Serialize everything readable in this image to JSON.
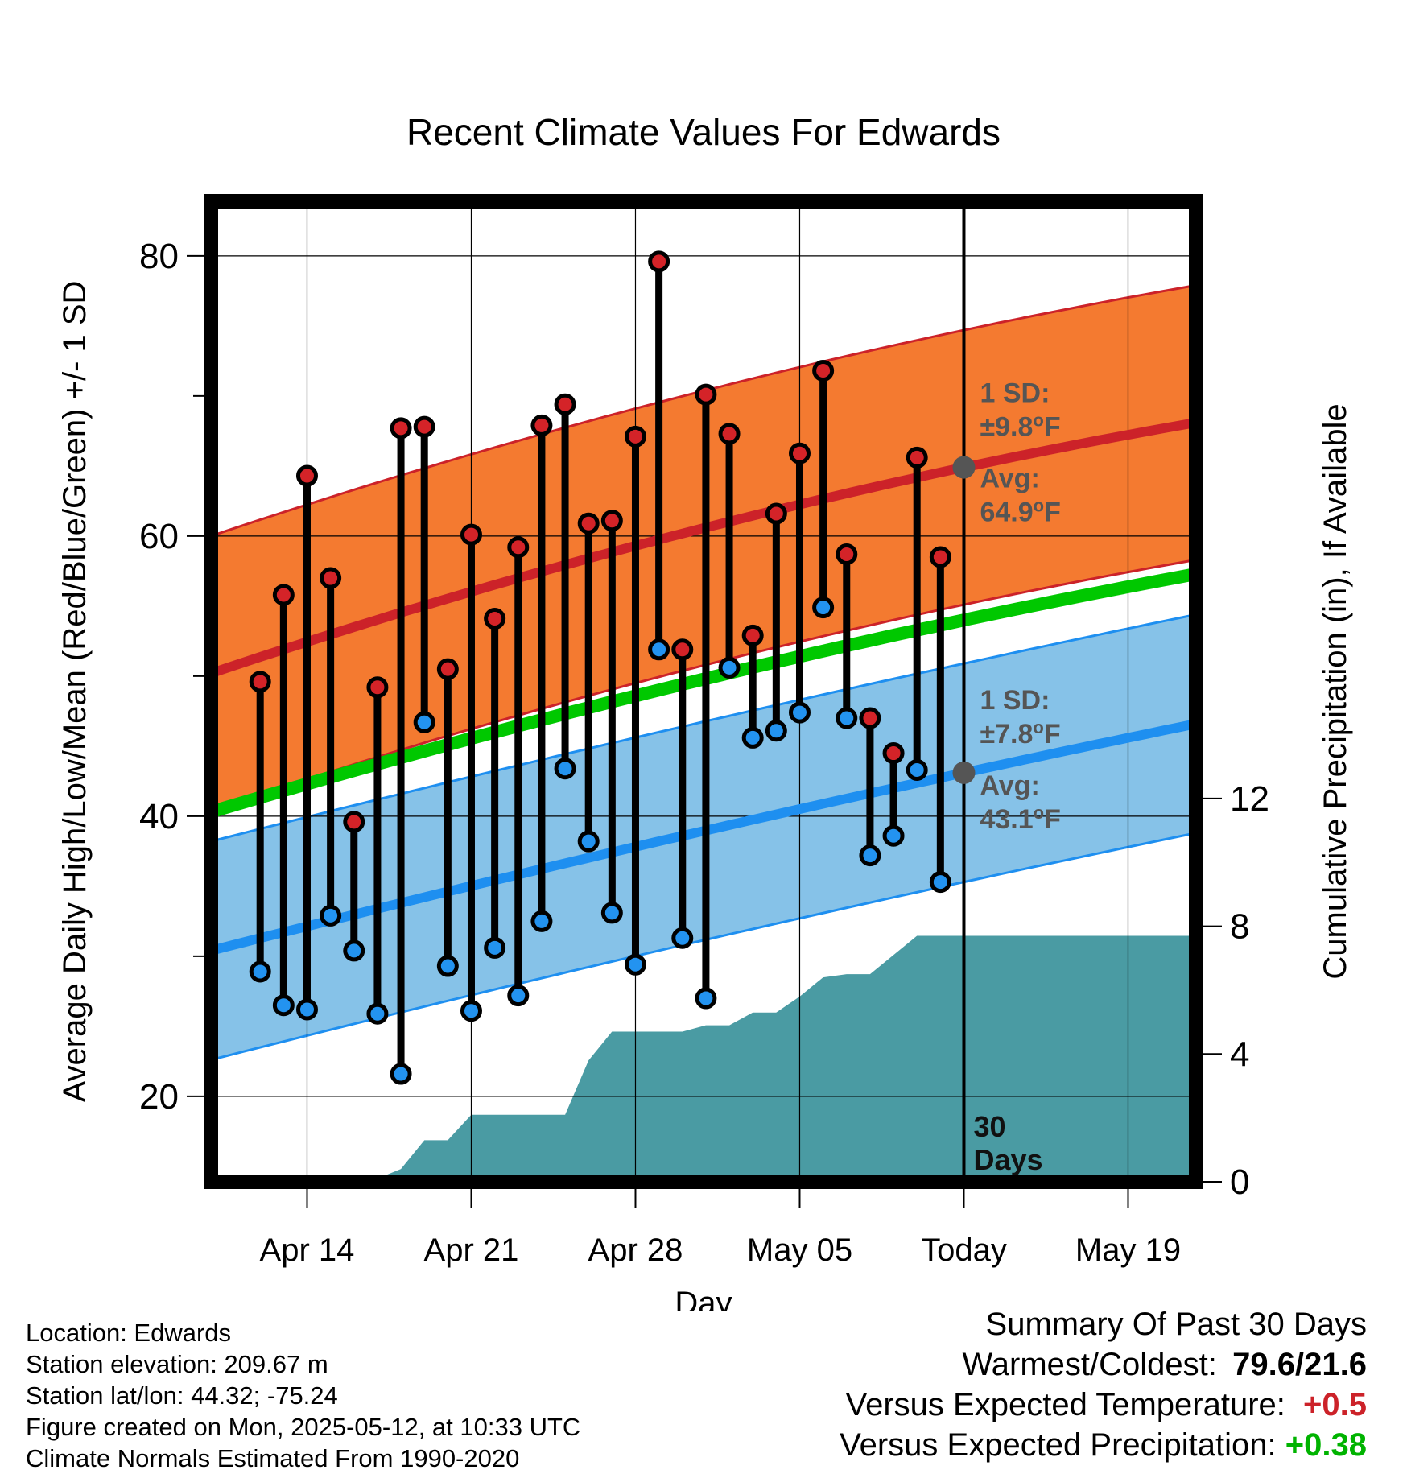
{
  "chart_data": {
    "type": "line",
    "title": "Recent Climate Values For Edwards",
    "xlabel": "Day",
    "ylabel": "Average Daily High/Low/Mean (Red/Blue/Green) +/- 1 SD",
    "ylabel_right": "Cumulative Precipitation (in), If Available",
    "x_ticks": [
      "Apr 14",
      "Apr 21",
      "Apr 28",
      "May 05",
      "Today",
      "May 19"
    ],
    "y_ticks_left": [
      20,
      40,
      60,
      80
    ],
    "y_ticks_right": [
      0,
      4,
      8,
      12
    ],
    "ylim": [
      13.9,
      83.9
    ],
    "ylim_right": [
      0,
      30.7
    ],
    "xlim_days": [
      -32.1,
      9.9
    ],
    "grid": true,
    "days": [
      -30,
      -29,
      -28,
      -27,
      -26,
      -25,
      -24,
      -23,
      -22,
      -21,
      -20,
      -19,
      -18,
      -17,
      -16,
      -15,
      -14,
      -13,
      -12,
      -11,
      -10,
      -9,
      -8,
      -7,
      -6,
      -5,
      -4,
      -3,
      -2,
      -1
    ],
    "highs": [
      49.6,
      55.8,
      64.3,
      57.0,
      39.6,
      49.2,
      67.7,
      67.8,
      50.5,
      60.1,
      54.1,
      59.2,
      67.9,
      69.4,
      60.9,
      61.1,
      67.1,
      79.6,
      51.9,
      70.1,
      67.3,
      52.9,
      61.6,
      65.9,
      71.8,
      58.7,
      47.0,
      44.5,
      65.6,
      58.5
    ],
    "lows": [
      28.9,
      26.5,
      26.2,
      32.9,
      30.4,
      25.9,
      21.6,
      46.7,
      29.3,
      26.1,
      30.6,
      27.2,
      32.5,
      43.4,
      38.2,
      33.1,
      29.4,
      51.9,
      31.3,
      27.0,
      50.6,
      45.6,
      46.1,
      47.4,
      54.9,
      47.0,
      37.2,
      38.6,
      43.3,
      35.3
    ],
    "normal_high": {
      "start": 50.2,
      "today": 64.9,
      "end": 68.1,
      "sd": 9.8
    },
    "normal_low": {
      "start": 30.4,
      "today": 43.1,
      "end": 46.6,
      "sd": 7.8
    },
    "normal_mean": {
      "start": 40.3,
      "today": 54.0,
      "end": 57.3
    },
    "precip_cumulative": [
      0,
      0,
      0,
      0,
      0,
      0.1,
      0.4,
      1.3,
      1.3,
      2.1,
      2.1,
      2.1,
      2.1,
      2.1,
      3.8,
      4.7,
      4.7,
      4.7,
      4.7,
      4.9,
      4.9,
      5.3,
      5.3,
      5.8,
      6.4,
      6.5,
      6.5,
      7.1,
      7.7,
      7.7,
      7.7
    ],
    "annotations": {
      "high_sd_label": "1 SD:",
      "high_sd_value": "±9.8",
      "high_avg_label": "Avg:",
      "high_avg_value": "64.9",
      "low_sd_label": "1 SD:",
      "low_sd_value": "±7.8",
      "low_avg_label": "Avg:",
      "low_avg_value": "43.1",
      "degree_unit": "o",
      "temp_unit": "F",
      "window_count": "30",
      "window_unit": "Days"
    },
    "colors": {
      "high_band": "#f47a30",
      "high_line": "#cc2229",
      "low_band": "#86c2e8",
      "low_line": "#1e8ff0",
      "mean_line": "#00c800",
      "precip": "#4a9ba3",
      "marker_high": "#d42328",
      "marker_low": "#2393f0",
      "avg_marker": "#555555",
      "annotation_text": "#555555"
    }
  },
  "footer": {
    "location": "Location: Edwards",
    "elevation": "Station elevation: 209.67 m",
    "latlon": "Station lat/lon: 44.32; -75.24",
    "created": "Figure created on Mon, 2025-05-12, at 10:33 UTC",
    "normals": "Climate Normals Estimated From 1990-2020"
  },
  "summary": {
    "title": "Summary Of Past 30 Days",
    "warmest_label": "Warmest/Coldest:",
    "warmest_value": "79.6/21.6",
    "temp_label": "Versus Expected Temperature:",
    "temp_value": "+0.5",
    "temp_color": "#cc2229",
    "precip_label": "Versus Expected Precipitation:",
    "precip_value": "+0.38",
    "precip_color": "#00b300"
  }
}
